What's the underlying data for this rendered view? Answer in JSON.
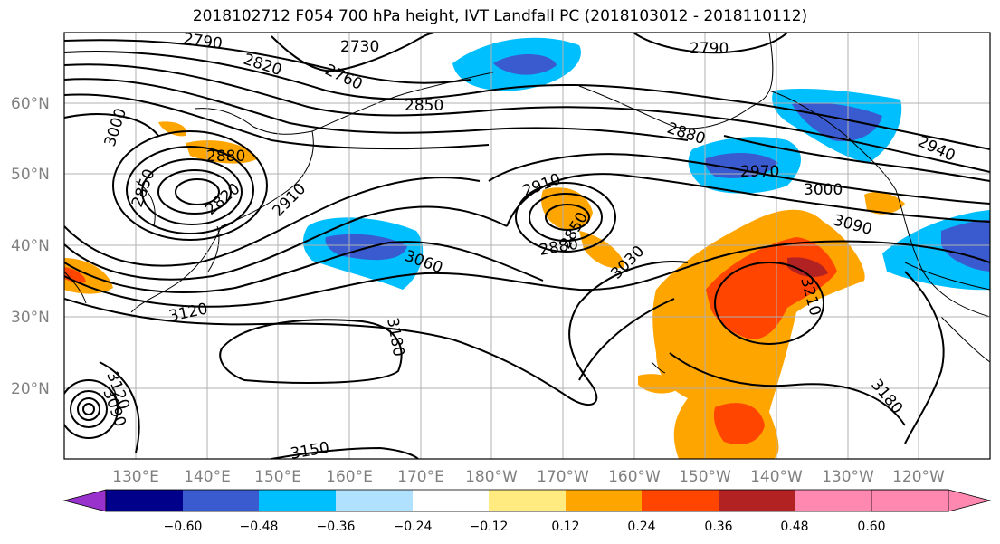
{
  "title": "2018102712 F054 700 hPa height, IVT Landfall PC (2018103012 - 2018110112)",
  "map": {
    "lat_ticks": [
      "60°N",
      "50°N",
      "40°N",
      "30°N",
      "20°N"
    ],
    "lon_ticks": [
      "130°E",
      "140°E",
      "150°E",
      "160°E",
      "170°E",
      "180°W",
      "170°W",
      "160°W",
      "150°W",
      "140°W",
      "130°W",
      "120°W"
    ],
    "contour_labels": [
      "2790",
      "2730",
      "2790",
      "2820",
      "2760",
      "2850",
      "3000",
      "2880",
      "2850",
      "2820",
      "2910",
      "2910",
      "2970",
      "3000",
      "2880",
      "3090",
      "2940",
      "2880",
      "2850",
      "3030",
      "3060",
      "3210",
      "3120",
      "3180",
      "3180",
      "3120",
      "3090",
      "3150"
    ]
  },
  "colorbar": {
    "labels": [
      "−0.60",
      "−0.48",
      "−0.36",
      "−0.24",
      "−0.12",
      "0.12",
      "0.24",
      "0.36",
      "0.48",
      "0.60"
    ],
    "colors": [
      "#9932cc",
      "#00008b",
      "#3a5bcf",
      "#00bfff",
      "#b0e2ff",
      "#ffffff",
      "#ffeb80",
      "#ffa500",
      "#ff4500",
      "#b22222",
      "#ff88b0"
    ]
  },
  "colors": {
    "grid": "#b0b0b0",
    "contour": "#000000",
    "tick_label": "#808080"
  }
}
